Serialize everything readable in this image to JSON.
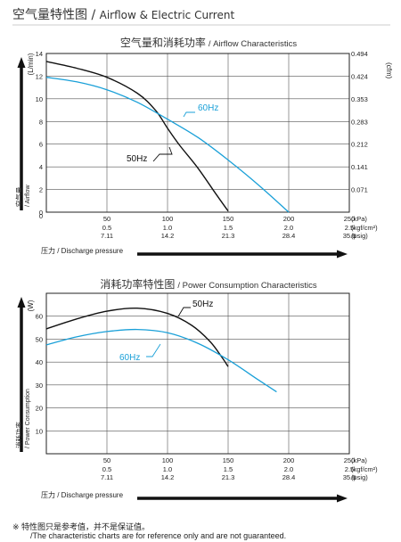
{
  "page": {
    "title_cn": "空气量特性图",
    "title_sep": " / ",
    "title_en": "Airflow & Electric Current",
    "accent_color": "#1aa0d8",
    "footnote_cn": "※ 特性图只是参考值，并不是保证值。",
    "footnote_en": "/The characteristic charts are for reference only and are not guaranteed."
  },
  "chart_data": [
    {
      "type": "line",
      "title": "空气量和消耗功率",
      "subtitle": "/ Airflow Characteristics",
      "xlabel": "压力 / Discharge pressure",
      "ylabel": "空气量 / Airflow",
      "ylabel_unit": "(L/min)",
      "y2label_unit": "(cfm)",
      "xlim": [
        0,
        250
      ],
      "ylim": [
        0,
        14
      ],
      "grid": true,
      "x_ticks": {
        "kpa": [
          "0",
          "50",
          "100",
          "150",
          "200",
          "250"
        ],
        "kgf": [
          "0.5",
          "1.0",
          "1.5",
          "2.0",
          "2.5"
        ],
        "psig": [
          "7.11",
          "14.2",
          "21.3",
          "28.4",
          "35.6"
        ],
        "unit_kpa": "(kPa)",
        "unit_kgf": "(kgf/cm²)",
        "unit_psig": "(psig)"
      },
      "y_ticks": [
        0,
        2,
        4,
        6,
        8,
        10,
        12,
        14
      ],
      "y2_ticks": [
        "0.071",
        "0.141",
        "0.212",
        "0.283",
        "0.353",
        "0.424",
        "0.494"
      ],
      "series": [
        {
          "name": "50Hz",
          "color": "#111111",
          "x": [
            0,
            25,
            50,
            75,
            90,
            100,
            110,
            125,
            140,
            150
          ],
          "y": [
            13.3,
            12.7,
            11.9,
            10.5,
            9.0,
            7.4,
            5.9,
            3.9,
            1.6,
            0.1
          ]
        },
        {
          "name": "60Hz",
          "color": "#1aa0d8",
          "x": [
            0,
            25,
            50,
            75,
            100,
            125,
            150,
            175,
            200
          ],
          "y": [
            11.9,
            11.5,
            10.8,
            9.7,
            8.2,
            6.6,
            4.6,
            2.4,
            0.0
          ]
        }
      ]
    },
    {
      "type": "line",
      "title": "消耗功率特性图",
      "subtitle": "/ Power Consumption Characteristics",
      "xlabel": "压力 / Discharge pressure",
      "ylabel": "消耗功率 / Power Consumption",
      "ylabel_unit": "(W)",
      "xlim": [
        0,
        250
      ],
      "ylim": [
        0,
        70
      ],
      "grid": true,
      "x_ticks": {
        "kpa": [
          "0",
          "50",
          "100",
          "150",
          "200",
          "250"
        ],
        "kgf": [
          "0.5",
          "1.0",
          "1.5",
          "2.0",
          "2.5"
        ],
        "psig": [
          "7.11",
          "14.2",
          "21.3",
          "28.4",
          "35.6"
        ],
        "unit_kpa": "(kPa)",
        "unit_kgf": "(kgf/cm²)",
        "unit_psig": "(psig)"
      },
      "y_ticks": [
        10,
        20,
        30,
        40,
        50,
        60
      ],
      "series": [
        {
          "name": "50Hz",
          "color": "#111111",
          "x": [
            0,
            25,
            50,
            75,
            100,
            120,
            135,
            145,
            150
          ],
          "y": [
            54.5,
            58.8,
            62.2,
            63.5,
            61.2,
            56.0,
            49.0,
            42.0,
            38.0
          ]
        },
        {
          "name": "60Hz",
          "color": "#1aa0d8",
          "x": [
            0,
            25,
            50,
            75,
            100,
            125,
            150,
            175,
            190
          ],
          "y": [
            47.5,
            51.0,
            53.3,
            54.2,
            52.8,
            48.2,
            41.0,
            32.2,
            27.0
          ]
        }
      ]
    }
  ]
}
